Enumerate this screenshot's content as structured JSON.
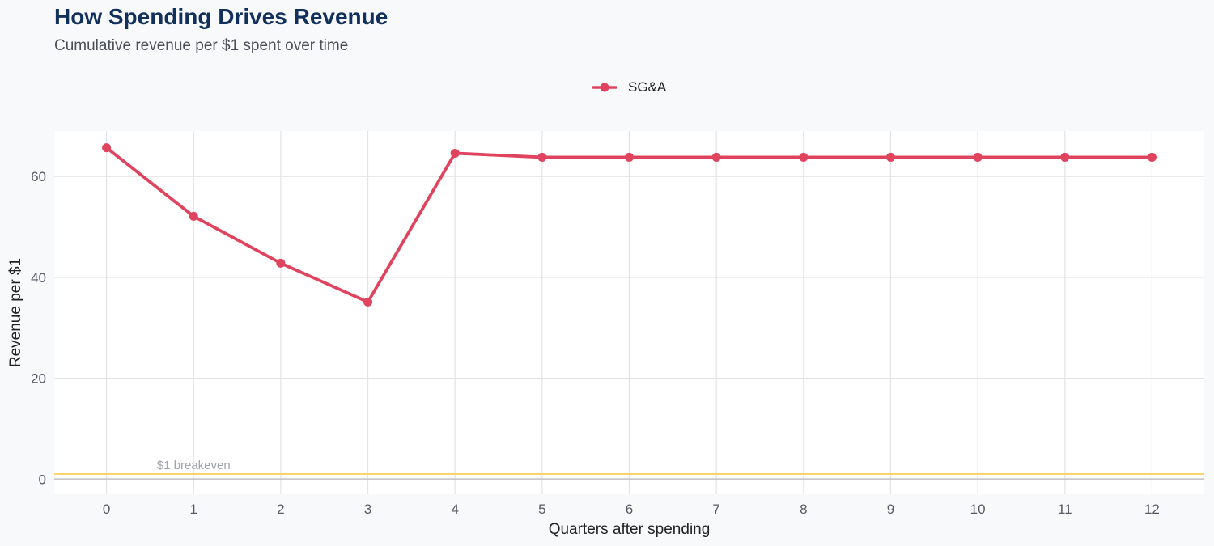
{
  "chart_data": {
    "type": "line",
    "title": "How Spending Drives Revenue",
    "subtitle": "Cumulative revenue per $1 spent over time",
    "xlabel": "Quarters after spending",
    "ylabel": "Revenue per $1",
    "x": [
      0,
      1,
      2,
      3,
      4,
      5,
      6,
      7,
      8,
      9,
      10,
      11,
      12
    ],
    "x_tick_labels": [
      "0",
      "1",
      "2",
      "3",
      "4",
      "5",
      "6",
      "7",
      "8",
      "9",
      "10",
      "11",
      "12"
    ],
    "y_ticks": [
      0,
      20,
      40,
      60
    ],
    "y_tick_labels": [
      "0",
      "20",
      "40",
      "60"
    ],
    "xlim": [
      -0.6,
      12.6
    ],
    "ylim": [
      -3,
      69
    ],
    "grid": true,
    "legend_position": "top-center",
    "series": [
      {
        "name": "SG&A",
        "color": "#e0435e",
        "values": [
          65.7,
          52.1,
          42.8,
          35.1,
          64.6,
          63.8,
          63.8,
          63.8,
          63.8,
          63.8,
          63.8,
          63.8,
          63.8
        ]
      }
    ],
    "reference_lines": [
      {
        "y": 1,
        "label": "$1 breakeven",
        "label_x": 1,
        "color": "#ffd36b"
      }
    ],
    "zero_line_color": "#c8c8c8"
  }
}
